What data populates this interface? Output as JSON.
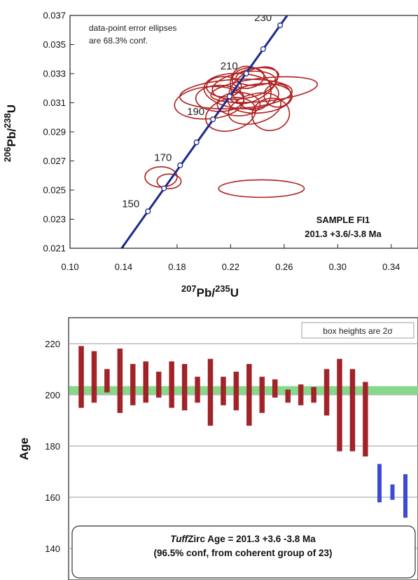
{
  "chart_data": [
    {
      "type": "scatter",
      "subtype": "concordia-diagram",
      "xlabel": "207Pb/235U",
      "xlabel_parts": [
        {
          "sup": "207",
          "base": "Pb/"
        },
        {
          "sup": "235",
          "base": "U"
        }
      ],
      "ylabel_parts": [
        {
          "sup": "206",
          "base": "Pb/"
        },
        {
          "sup": "238",
          "base": "U"
        }
      ],
      "xlim": [
        0.1,
        0.36
      ],
      "ylim": [
        0.021,
        0.037
      ],
      "x_ticks": [
        "0.10",
        "0.14",
        "0.18",
        "0.22",
        "0.26",
        "0.30",
        "0.34"
      ],
      "y_ticks": [
        "0.021",
        "0.023",
        "0.025",
        "0.027",
        "0.029",
        "0.031",
        "0.033",
        "0.035",
        "0.037"
      ],
      "note_lines": [
        "data-point error ellipses",
        "are 68.3% conf."
      ],
      "sample_lines": [
        "SAMPLE FI1",
        "201.3 +3.6/-3.8 Ma"
      ],
      "concordia": {
        "color": "#1c2a8c",
        "ages": [
          150,
          160,
          170,
          180,
          190,
          200,
          210,
          220,
          230
        ],
        "labels": [
          "150",
          "170",
          "190",
          "210",
          "230"
        ],
        "ratios": [
          {
            "age": 150,
            "x": 0.1582,
            "y": 0.02354
          },
          {
            "age": 160,
            "x": 0.1702,
            "y": 0.02512
          },
          {
            "age": 170,
            "x": 0.1823,
            "y": 0.0267
          },
          {
            "age": 180,
            "x": 0.1945,
            "y": 0.02828
          },
          {
            "age": 190,
            "x": 0.2068,
            "y": 0.02986
          },
          {
            "age": 200,
            "x": 0.2192,
            "y": 0.03144
          },
          {
            "age": 210,
            "x": 0.2317,
            "y": 0.03301
          },
          {
            "age": 220,
            "x": 0.2443,
            "y": 0.03469
          },
          {
            "age": 230,
            "x": 0.257,
            "y": 0.03632
          }
        ]
      },
      "ellipse_color": "#b01e1e",
      "ellipses": [
        {
          "cx": 0.168,
          "cy": 0.0259,
          "rx": 0.012,
          "ry": 0.0007,
          "rot": 0
        },
        {
          "cx": 0.174,
          "cy": 0.0256,
          "rx": 0.009,
          "ry": 0.0005,
          "rot": 0
        },
        {
          "cx": 0.243,
          "cy": 0.0251,
          "rx": 0.032,
          "ry": 0.0006,
          "rot": 0
        },
        {
          "cx": 0.204,
          "cy": 0.031,
          "rx": 0.026,
          "ry": 0.0011,
          "rot": 5
        },
        {
          "cx": 0.224,
          "cy": 0.0316,
          "rx": 0.042,
          "ry": 0.001,
          "rot": 3
        },
        {
          "cx": 0.245,
          "cy": 0.0319,
          "rx": 0.04,
          "ry": 0.0008,
          "rot": 6
        },
        {
          "cx": 0.23,
          "cy": 0.0322,
          "rx": 0.024,
          "ry": 0.0009,
          "rot": 10
        },
        {
          "cx": 0.235,
          "cy": 0.032,
          "rx": 0.014,
          "ry": 0.0016,
          "rot": 35
        },
        {
          "cx": 0.228,
          "cy": 0.0318,
          "rx": 0.028,
          "ry": 0.0012,
          "rot": -5
        },
        {
          "cx": 0.242,
          "cy": 0.0313,
          "rx": 0.024,
          "ry": 0.001,
          "rot": 5
        },
        {
          "cx": 0.22,
          "cy": 0.0302,
          "rx": 0.019,
          "ry": 0.0011,
          "rot": 15
        },
        {
          "cx": 0.25,
          "cy": 0.0302,
          "rx": 0.014,
          "ry": 0.0011,
          "rot": 10
        },
        {
          "cx": 0.238,
          "cy": 0.0306,
          "rx": 0.02,
          "ry": 0.001,
          "rot": 15
        },
        {
          "cx": 0.226,
          "cy": 0.0309,
          "rx": 0.016,
          "ry": 0.0008,
          "rot": 0
        },
        {
          "cx": 0.233,
          "cy": 0.0327,
          "rx": 0.012,
          "ry": 0.0007,
          "rot": 10
        },
        {
          "cx": 0.215,
          "cy": 0.0321,
          "rx": 0.013,
          "ry": 0.0007,
          "rot": 0
        },
        {
          "cx": 0.24,
          "cy": 0.0328,
          "rx": 0.016,
          "ry": 0.0006,
          "rot": 5
        },
        {
          "cx": 0.255,
          "cy": 0.0315,
          "rx": 0.01,
          "ry": 0.0008,
          "rot": 0
        },
        {
          "cx": 0.212,
          "cy": 0.0313,
          "rx": 0.018,
          "ry": 0.0009,
          "rot": 0
        },
        {
          "cx": 0.237,
          "cy": 0.0322,
          "rx": 0.02,
          "ry": 0.001,
          "rot": 30
        }
      ]
    },
    {
      "type": "bar",
      "subtype": "age-error-bars",
      "ylabel": "Age",
      "ylim": [
        140,
        230
      ],
      "y_ticks": [
        "140",
        "160",
        "180",
        "200",
        "220"
      ],
      "note": "box heights are 2σ",
      "band": {
        "low": 200.2,
        "high": 203.4,
        "color": "#86d98a"
      },
      "coherent_color": "#a8262c",
      "rejected_color": "#3c4ad4",
      "coherent": [
        {
          "low": 195,
          "high": 219
        },
        {
          "low": 197,
          "high": 217
        },
        {
          "low": 201,
          "high": 210
        },
        {
          "low": 193,
          "high": 218
        },
        {
          "low": 196,
          "high": 212
        },
        {
          "low": 197,
          "high": 213
        },
        {
          "low": 199,
          "high": 209
        },
        {
          "low": 195,
          "high": 213
        },
        {
          "low": 194,
          "high": 212
        },
        {
          "low": 197,
          "high": 207
        },
        {
          "low": 188,
          "high": 214
        },
        {
          "low": 196,
          "high": 207
        },
        {
          "low": 194,
          "high": 209
        },
        {
          "low": 188,
          "high": 212
        },
        {
          "low": 193,
          "high": 207
        },
        {
          "low": 199,
          "high": 206
        },
        {
          "low": 197,
          "high": 202
        },
        {
          "low": 196,
          "high": 204
        },
        {
          "low": 197,
          "high": 203
        },
        {
          "low": 192,
          "high": 210
        },
        {
          "low": 178,
          "high": 214
        },
        {
          "low": 178,
          "high": 210
        },
        {
          "low": 176,
          "high": 205
        }
      ],
      "rejected": [
        {
          "low": 158,
          "high": 173
        },
        {
          "low": 159,
          "high": 165
        },
        {
          "low": 152,
          "high": 169
        }
      ],
      "result_parts": {
        "italic": "Tuff",
        "rest": "Zirc Age  =  201.3    +3.6    -3.8   Ma"
      },
      "result_line2": "(96.5% conf, from coherent group of 23)"
    }
  ]
}
